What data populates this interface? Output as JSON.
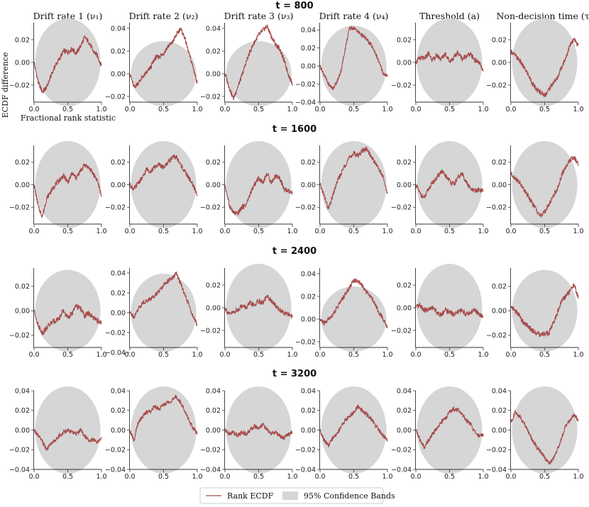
{
  "chart_data": {
    "type": "line",
    "figure": "ECDF difference plots (rank ECDF) per parameter and time step",
    "columns": [
      {
        "label": "Drift rate 1 (ν₁)"
      },
      {
        "label": "Drift rate 2 (ν₂)"
      },
      {
        "label": "Drift rate 3 (ν₃)"
      },
      {
        "label": "Drift rate 4 (ν₄)"
      },
      {
        "label": "Threshold (a)"
      },
      {
        "label": "Non-decision time (τ)"
      }
    ],
    "rows": [
      {
        "title": "t = 800",
        "panels": [
          {
            "ylim": [
              -0.035,
              0.035
            ],
            "yticks": [
              "0.02",
              "0.00",
              "−0.02"
            ],
            "y": [
              0.0,
              -0.018,
              -0.026,
              -0.022,
              -0.012,
              -0.003,
              0.003,
              0.01,
              0.009,
              0.012,
              0.008,
              0.014,
              0.022,
              0.018,
              0.01,
              0.006,
              -0.003
            ]
          },
          {
            "ylim": [
              -0.025,
              0.045
            ],
            "yticks": [
              "0.04",
              "0.02",
              "0.00",
              "−0.02"
            ],
            "y": [
              0.0,
              -0.012,
              -0.008,
              -0.003,
              0.001,
              0.006,
              0.014,
              0.015,
              0.018,
              0.024,
              0.027,
              0.034,
              0.04,
              0.032,
              0.018,
              0.006,
              -0.008
            ]
          },
          {
            "ylim": [
              -0.025,
              0.045
            ],
            "yticks": [
              "0.04",
              "0.02",
              "0.00",
              "−0.02"
            ],
            "y": [
              0.0,
              -0.012,
              -0.022,
              -0.012,
              -0.002,
              0.01,
              0.02,
              0.028,
              0.034,
              0.038,
              0.042,
              0.033,
              0.026,
              0.022,
              0.012,
              0.0,
              -0.009
            ]
          },
          {
            "ylim": [
              -0.04,
              0.048
            ],
            "yticks": [
              "0.04",
              "0.02",
              "0.00",
              "−0.02",
              "−0.04"
            ],
            "y": [
              0.0,
              -0.01,
              -0.02,
              -0.025,
              -0.018,
              -0.005,
              0.02,
              0.042,
              0.042,
              0.038,
              0.034,
              0.03,
              0.024,
              0.016,
              0.004,
              -0.008,
              -0.012
            ]
          },
          {
            "ylim": [
              -0.035,
              0.035
            ],
            "yticks": [
              "0.02",
              "0.00",
              "−0.02"
            ],
            "y": [
              0.0,
              0.004,
              0.003,
              0.008,
              0.002,
              0.006,
              0.003,
              0.008,
              0.001,
              0.004,
              0.009,
              0.003,
              0.006,
              0.007,
              0.002,
              0.0,
              -0.008
            ]
          },
          {
            "ylim": [
              -0.035,
              0.035
            ],
            "yticks": [
              "0.02",
              "0.00",
              "−0.02"
            ],
            "y": [
              0.01,
              0.006,
              0.002,
              -0.004,
              -0.01,
              -0.018,
              -0.024,
              -0.026,
              -0.029,
              -0.024,
              -0.018,
              -0.014,
              -0.004,
              0.004,
              0.015,
              0.02,
              0.015
            ]
          }
        ]
      },
      {
        "title": "t = 1600",
        "panels": [
          {
            "ylim": [
              -0.035,
              0.035
            ],
            "yticks": [
              "0.02",
              "0.00",
              "−0.02"
            ],
            "y": [
              0.0,
              -0.02,
              -0.028,
              -0.012,
              -0.006,
              0.0,
              0.004,
              0.008,
              0.002,
              0.01,
              0.006,
              0.012,
              0.018,
              0.015,
              0.01,
              0.004,
              -0.01
            ]
          },
          {
            "ylim": [
              -0.035,
              0.035
            ],
            "yticks": [
              "0.02",
              "0.00",
              "−0.02"
            ],
            "y": [
              0.0,
              -0.004,
              0.002,
              0.006,
              0.014,
              0.012,
              0.016,
              0.018,
              0.015,
              0.02,
              0.024,
              0.025,
              0.018,
              0.012,
              0.006,
              0.0,
              -0.01
            ]
          },
          {
            "ylim": [
              -0.035,
              0.035
            ],
            "yticks": [
              "0.02",
              "0.00",
              "−0.02"
            ],
            "y": [
              0.0,
              -0.018,
              -0.025,
              -0.026,
              -0.02,
              -0.018,
              -0.008,
              0.0,
              0.006,
              0.002,
              0.01,
              0.002,
              0.008,
              0.006,
              -0.004,
              -0.006,
              -0.008
            ]
          },
          {
            "ylim": [
              -0.035,
              0.035
            ],
            "yticks": [
              "0.02",
              "0.00",
              "−0.02"
            ],
            "y": [
              0.0,
              -0.01,
              -0.022,
              -0.01,
              0.002,
              0.01,
              0.018,
              0.024,
              0.028,
              0.026,
              0.03,
              0.032,
              0.026,
              0.02,
              0.014,
              0.006,
              -0.008
            ]
          },
          {
            "ylim": [
              -0.035,
              0.035
            ],
            "yticks": [
              "0.02",
              "0.00",
              "−0.02"
            ],
            "y": [
              0.0,
              -0.008,
              -0.012,
              -0.004,
              0.002,
              0.006,
              0.012,
              0.008,
              0.004,
              0.0,
              0.006,
              0.01,
              0.002,
              -0.004,
              -0.006,
              -0.004,
              -0.006
            ]
          },
          {
            "ylim": [
              -0.035,
              0.035
            ],
            "yticks": [
              "0.02",
              "0.00",
              "−0.02"
            ],
            "y": [
              0.01,
              0.006,
              0.002,
              -0.004,
              -0.01,
              -0.016,
              -0.022,
              -0.028,
              -0.024,
              -0.018,
              -0.01,
              -0.004,
              0.008,
              0.016,
              0.022,
              0.024,
              0.018
            ]
          }
        ]
      },
      {
        "title": "t = 2400",
        "panels": [
          {
            "ylim": [
              -0.03,
              0.035
            ],
            "yticks": [
              "0.02",
              "0.00",
              "−0.02"
            ],
            "y": [
              0.0,
              -0.012,
              -0.018,
              -0.014,
              -0.01,
              -0.008,
              -0.006,
              0.0,
              -0.006,
              -0.002,
              0.004,
              0.002,
              -0.004,
              -0.002,
              -0.006,
              -0.008,
              -0.01
            ]
          },
          {
            "ylim": [
              -0.035,
              0.045
            ],
            "yticks": [
              "0.04",
              "0.02",
              "0.00",
              "−0.02",
              "−0.04"
            ],
            "y": [
              0.0,
              -0.004,
              0.004,
              0.01,
              0.012,
              0.014,
              0.018,
              0.022,
              0.028,
              0.032,
              0.034,
              0.04,
              0.03,
              0.018,
              0.008,
              -0.004,
              -0.012
            ]
          },
          {
            "ylim": [
              -0.035,
              0.035
            ],
            "yticks": [
              "0.02",
              "0.00",
              "−0.02"
            ],
            "y": [
              0.0,
              -0.006,
              -0.004,
              -0.002,
              0.002,
              0.0,
              0.004,
              0.002,
              0.006,
              0.004,
              0.01,
              0.006,
              0.002,
              -0.002,
              -0.004,
              -0.006,
              -0.008
            ]
          },
          {
            "ylim": [
              -0.025,
              0.045
            ],
            "yticks": [
              "0.04",
              "0.02",
              "0.00",
              "−0.02"
            ],
            "y": [
              0.0,
              -0.004,
              0.0,
              0.004,
              0.01,
              0.016,
              0.022,
              0.028,
              0.034,
              0.034,
              0.03,
              0.024,
              0.02,
              0.014,
              0.006,
              0.0,
              -0.008
            ]
          },
          {
            "ylim": [
              -0.035,
              0.035
            ],
            "yticks": [
              "0.02",
              "0.00",
              "−0.02"
            ],
            "y": [
              0.0,
              0.002,
              -0.002,
              -0.002,
              0.0,
              -0.004,
              -0.006,
              -0.002,
              -0.004,
              -0.006,
              -0.004,
              -0.002,
              -0.006,
              -0.004,
              -0.002,
              -0.006,
              -0.008
            ]
          },
          {
            "ylim": [
              -0.03,
              0.035
            ],
            "yticks": [
              "0.02",
              "0.00",
              "−0.02"
            ],
            "y": [
              0.004,
              0.0,
              -0.004,
              -0.01,
              -0.012,
              -0.016,
              -0.018,
              -0.02,
              -0.019,
              -0.018,
              -0.01,
              -0.002,
              0.008,
              0.012,
              0.016,
              0.022,
              0.01
            ]
          }
        ]
      },
      {
        "title": "t = 3200",
        "panels": [
          {
            "ylim": [
              -0.04,
              0.04
            ],
            "yticks": [
              "0.04",
              "0.02",
              "0.00",
              "−0.02",
              "−0.04"
            ],
            "y": [
              0.0,
              -0.006,
              -0.012,
              -0.02,
              -0.014,
              -0.01,
              -0.006,
              -0.002,
              0.0,
              -0.002,
              -0.004,
              0.0,
              -0.006,
              -0.01,
              -0.01,
              -0.012,
              -0.008
            ]
          },
          {
            "ylim": [
              -0.04,
              0.04
            ],
            "yticks": [
              "0.04",
              "0.02",
              "0.00",
              "−0.02",
              "−0.04"
            ],
            "y": [
              0.0,
              -0.01,
              0.008,
              0.014,
              0.018,
              0.02,
              0.024,
              0.022,
              0.026,
              0.028,
              0.03,
              0.034,
              0.028,
              0.02,
              0.01,
              0.002,
              -0.004
            ]
          },
          {
            "ylim": [
              -0.04,
              0.04
            ],
            "yticks": [
              "0.04",
              "0.02",
              "0.00",
              "−0.02",
              "−0.04"
            ],
            "y": [
              0.0,
              -0.004,
              -0.002,
              -0.006,
              -0.002,
              -0.004,
              0.0,
              0.004,
              0.002,
              0.006,
              0.0,
              -0.004,
              -0.002,
              -0.006,
              -0.008,
              -0.004,
              -0.002
            ]
          },
          {
            "ylim": [
              -0.04,
              0.04
            ],
            "yticks": [
              "0.04",
              "0.02",
              "0.00",
              "−0.02",
              "−0.04"
            ],
            "y": [
              0.0,
              -0.01,
              -0.016,
              -0.008,
              -0.004,
              0.004,
              0.01,
              0.014,
              0.018,
              0.024,
              0.02,
              0.016,
              0.012,
              0.006,
              0.0,
              -0.006,
              -0.01
            ]
          },
          {
            "ylim": [
              -0.04,
              0.04
            ],
            "yticks": [
              "0.04",
              "0.02",
              "0.00",
              "−0.02",
              "−0.04"
            ],
            "y": [
              0.0,
              -0.01,
              -0.018,
              -0.01,
              -0.004,
              0.002,
              0.008,
              0.012,
              0.018,
              0.022,
              0.02,
              0.016,
              0.01,
              0.006,
              -0.002,
              -0.006,
              -0.004
            ]
          },
          {
            "ylim": [
              -0.04,
              0.04
            ],
            "yticks": [
              "0.04",
              "0.02",
              "0.00",
              "−0.02",
              "−0.04"
            ],
            "y": [
              0.008,
              0.018,
              0.014,
              0.008,
              0.0,
              -0.01,
              -0.016,
              -0.022,
              -0.028,
              -0.034,
              -0.03,
              -0.02,
              -0.008,
              0.004,
              0.01,
              0.016,
              0.01
            ]
          }
        ]
      }
    ],
    "xlim": [
      0.0,
      1.0
    ],
    "xticks": [
      "0.0",
      "0.5",
      "1.0"
    ],
    "xlabel": "Fractional rank statistic",
    "ylabel": "ECDF difference",
    "legend": {
      "position": "bottom-center",
      "entries": [
        {
          "label": "Rank ECDF",
          "kind": "line"
        },
        {
          "label": "95% Confidence Bands",
          "kind": "band"
        }
      ]
    },
    "colors": {
      "line": "#a64a4a",
      "band": "#d6d6d6",
      "axis": "#333333"
    }
  }
}
